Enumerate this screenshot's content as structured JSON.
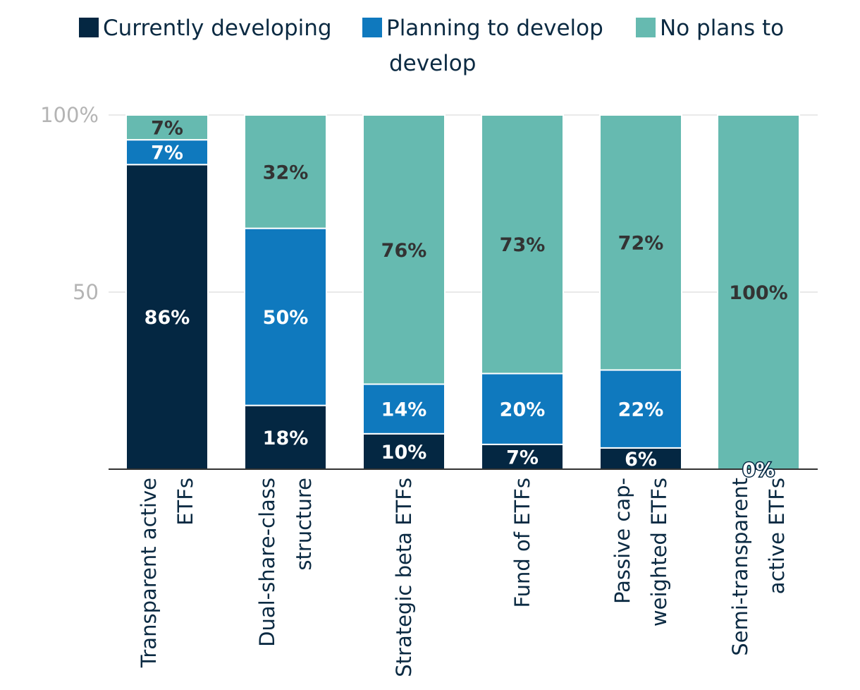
{
  "chart_data": {
    "type": "bar",
    "stacked": true,
    "categories": [
      [
        "Transparent active",
        "ETFs"
      ],
      [
        "Dual-share-class",
        "structure"
      ],
      [
        "Strategic beta ETFs"
      ],
      [
        "Fund of ETFs"
      ],
      [
        "Passive cap-",
        "weighted ETFs"
      ],
      [
        "Semi-transparent",
        "active ETFs"
      ]
    ],
    "series": [
      {
        "name": "Currently developing",
        "color": "#042742",
        "label_color": "#ffffff",
        "values": [
          86,
          18,
          10,
          7,
          6,
          0
        ],
        "labels": [
          "86%",
          "18%",
          "10%",
          "7%",
          "6%",
          "0%"
        ]
      },
      {
        "name": "Planning to develop",
        "color": "#0f79be",
        "label_color": "#ffffff",
        "values": [
          7,
          50,
          14,
          20,
          22,
          0
        ],
        "labels": [
          "7%",
          "50%",
          "14%",
          "20%",
          "22%",
          ""
        ]
      },
      {
        "name": "No plans to develop",
        "color": "#66bab0",
        "label_color": "#333333",
        "values": [
          7,
          32,
          76,
          73,
          72,
          100
        ],
        "labels": [
          "7%",
          "32%",
          "76%",
          "73%",
          "72%",
          "100%"
        ]
      }
    ],
    "legend": [
      {
        "lines": [
          "Currently developing"
        ],
        "color": "#042742"
      },
      {
        "lines": [
          "Planning to develop",
          "develop"
        ],
        "color": "#0f79be"
      },
      {
        "lines": [
          "No plans to"
        ],
        "color": "#66bab0"
      }
    ],
    "yticks": [
      {
        "value": 100,
        "label": "100%"
      },
      {
        "value": 50,
        "label": "50"
      }
    ],
    "ylim": [
      0,
      100
    ],
    "grid": true,
    "title": "",
    "xlabel": "",
    "ylabel": ""
  }
}
